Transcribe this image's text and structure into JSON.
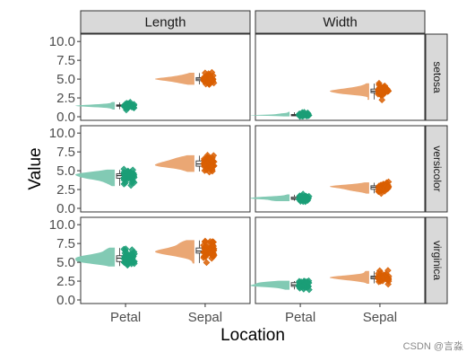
{
  "chart_data": {
    "type": "raincloud",
    "xlabel": "Location",
    "ylabel": "Value",
    "ylim": [
      0,
      10.5
    ],
    "yticks": [
      "0.0",
      "2.5",
      "5.0",
      "7.5",
      "10.0"
    ],
    "ytick_values": [
      0,
      2.5,
      5,
      7.5,
      10
    ],
    "categories": [
      "Petal",
      "Sepal"
    ],
    "columns": [
      "Length",
      "Width"
    ],
    "rows": [
      "setosa",
      "versicolor",
      "virginica"
    ],
    "colors": {
      "Petal": "#1b9e77",
      "Sepal": "#d95f02"
    },
    "panels": [
      {
        "column": "Length",
        "row": "setosa",
        "series": [
          {
            "category": "Petal",
            "values": [
              1.4,
              1.4,
              1.3,
              1.5,
              1.4,
              1.7,
              1.4,
              1.5,
              1.4,
              1.5,
              1.5,
              1.6,
              1.4,
              1.1,
              1.2,
              1.5,
              1.3,
              1.4,
              1.7,
              1.5,
              1.7,
              1.5,
              1.0,
              1.7,
              1.9,
              1.6,
              1.6,
              1.5,
              1.4,
              1.6,
              1.6,
              1.5,
              1.5,
              1.4,
              1.5,
              1.2,
              1.3,
              1.4,
              1.3,
              1.5,
              1.3,
              1.3,
              1.3,
              1.6,
              1.9,
              1.4,
              1.6,
              1.4,
              1.5,
              1.4
            ]
          },
          {
            "category": "Sepal",
            "values": [
              5.1,
              4.9,
              4.7,
              4.6,
              5.0,
              5.4,
              4.6,
              5.0,
              4.4,
              4.9,
              5.4,
              4.8,
              4.8,
              4.3,
              5.8,
              5.7,
              5.4,
              5.1,
              5.7,
              5.1,
              5.4,
              5.1,
              4.6,
              5.1,
              4.8,
              5.0,
              5.0,
              5.2,
              5.2,
              4.7,
              4.8,
              5.4,
              5.2,
              5.5,
              4.9,
              5.0,
              5.5,
              4.9,
              4.4,
              5.1,
              5.0,
              4.5,
              4.4,
              5.0,
              5.1,
              4.8,
              5.1,
              4.6,
              5.3,
              5.0
            ]
          }
        ]
      },
      {
        "column": "Width",
        "row": "setosa",
        "series": [
          {
            "category": "Petal",
            "values": [
              0.2,
              0.2,
              0.2,
              0.2,
              0.2,
              0.4,
              0.3,
              0.2,
              0.2,
              0.1,
              0.2,
              0.2,
              0.1,
              0.1,
              0.2,
              0.4,
              0.4,
              0.3,
              0.3,
              0.3,
              0.2,
              0.4,
              0.2,
              0.5,
              0.2,
              0.2,
              0.4,
              0.2,
              0.2,
              0.2,
              0.2,
              0.4,
              0.1,
              0.2,
              0.2,
              0.2,
              0.2,
              0.1,
              0.2,
              0.2,
              0.3,
              0.3,
              0.2,
              0.6,
              0.4,
              0.3,
              0.2,
              0.2,
              0.2,
              0.2
            ]
          },
          {
            "category": "Sepal",
            "values": [
              3.5,
              3.0,
              3.2,
              3.1,
              3.6,
              3.9,
              3.4,
              3.4,
              2.9,
              3.1,
              3.7,
              3.4,
              3.0,
              3.0,
              4.0,
              4.4,
              3.9,
              3.5,
              3.8,
              3.8,
              3.4,
              3.7,
              3.6,
              3.3,
              3.4,
              3.0,
              3.4,
              3.5,
              3.4,
              3.2,
              3.1,
              3.4,
              4.1,
              4.2,
              3.1,
              3.2,
              3.5,
              3.6,
              3.0,
              3.4,
              3.5,
              2.3,
              3.2,
              3.5,
              3.8,
              3.0,
              3.8,
              3.2,
              3.7,
              3.3
            ]
          }
        ]
      },
      {
        "column": "Length",
        "row": "versicolor",
        "series": [
          {
            "category": "Petal",
            "values": [
              4.7,
              4.5,
              4.9,
              4.0,
              4.6,
              4.5,
              4.7,
              3.3,
              4.6,
              3.9,
              3.5,
              4.2,
              4.0,
              4.7,
              3.6,
              4.4,
              4.5,
              4.1,
              4.5,
              3.9,
              4.8,
              4.0,
              4.9,
              4.7,
              4.3,
              4.4,
              4.8,
              5.0,
              4.5,
              3.5,
              3.8,
              3.7,
              3.9,
              5.1,
              4.5,
              4.5,
              4.7,
              4.4,
              4.1,
              4.0,
              4.4,
              4.6,
              4.0,
              3.3,
              4.2,
              4.2,
              4.2,
              4.3,
              3.0,
              4.1
            ]
          },
          {
            "category": "Sepal",
            "values": [
              7.0,
              6.4,
              6.9,
              5.5,
              6.5,
              5.7,
              6.3,
              4.9,
              6.6,
              5.2,
              5.0,
              5.9,
              6.0,
              6.1,
              5.6,
              6.7,
              5.6,
              5.8,
              6.2,
              5.6,
              5.9,
              6.1,
              6.3,
              6.1,
              6.4,
              6.6,
              6.8,
              6.7,
              6.0,
              5.7,
              5.5,
              5.5,
              5.8,
              6.0,
              5.4,
              6.0,
              6.7,
              6.3,
              5.6,
              5.5,
              5.5,
              6.1,
              5.8,
              5.0,
              5.6,
              5.7,
              5.7,
              6.2,
              5.1,
              5.7
            ]
          }
        ]
      },
      {
        "column": "Width",
        "row": "versicolor",
        "series": [
          {
            "category": "Petal",
            "values": [
              1.4,
              1.5,
              1.5,
              1.3,
              1.5,
              1.3,
              1.6,
              1.0,
              1.3,
              1.4,
              1.0,
              1.5,
              1.0,
              1.4,
              1.3,
              1.4,
              1.5,
              1.0,
              1.5,
              1.1,
              1.8,
              1.3,
              1.5,
              1.2,
              1.3,
              1.4,
              1.4,
              1.7,
              1.5,
              1.0,
              1.1,
              1.0,
              1.2,
              1.6,
              1.5,
              1.6,
              1.5,
              1.3,
              1.3,
              1.3,
              1.2,
              1.4,
              1.2,
              1.0,
              1.3,
              1.2,
              1.3,
              1.3,
              1.1,
              1.3
            ]
          },
          {
            "category": "Sepal",
            "values": [
              3.2,
              3.2,
              3.1,
              2.3,
              2.8,
              2.8,
              3.3,
              2.4,
              2.9,
              2.7,
              2.0,
              3.0,
              2.2,
              2.9,
              2.9,
              3.1,
              3.0,
              2.7,
              2.2,
              2.5,
              3.2,
              2.8,
              2.5,
              2.8,
              2.9,
              3.0,
              2.8,
              3.0,
              2.9,
              2.6,
              2.4,
              2.4,
              2.7,
              2.7,
              3.0,
              3.4,
              3.1,
              2.3,
              3.0,
              2.5,
              2.6,
              3.0,
              2.6,
              2.3,
              2.7,
              3.0,
              2.9,
              2.9,
              2.5,
              2.8
            ]
          }
        ]
      },
      {
        "column": "Length",
        "row": "virginica",
        "series": [
          {
            "category": "Petal",
            "values": [
              6.0,
              5.1,
              5.9,
              5.6,
              5.8,
              6.6,
              4.5,
              6.3,
              5.8,
              6.1,
              5.1,
              5.3,
              5.5,
              5.0,
              5.1,
              5.3,
              5.5,
              6.7,
              6.9,
              5.0,
              5.7,
              4.9,
              6.7,
              4.9,
              5.7,
              6.0,
              4.8,
              4.9,
              5.6,
              5.8,
              6.1,
              6.4,
              5.6,
              5.1,
              5.6,
              6.1,
              5.6,
              5.5,
              4.8,
              5.4,
              5.6,
              5.1,
              5.1,
              5.9,
              5.7,
              5.2,
              5.0,
              5.2,
              5.4,
              5.1
            ]
          },
          {
            "category": "Sepal",
            "values": [
              6.3,
              5.8,
              7.1,
              6.3,
              6.5,
              7.6,
              4.9,
              7.3,
              6.7,
              7.2,
              6.5,
              6.4,
              6.8,
              5.7,
              5.8,
              6.4,
              6.5,
              7.7,
              7.7,
              6.0,
              6.9,
              5.6,
              7.7,
              6.3,
              6.7,
              7.2,
              6.2,
              6.1,
              6.4,
              7.2,
              7.4,
              7.9,
              6.4,
              6.3,
              6.1,
              7.7,
              6.3,
              6.4,
              6.0,
              6.9,
              6.7,
              6.9,
              5.8,
              6.8,
              6.7,
              6.7,
              6.3,
              6.5,
              6.2,
              5.9
            ]
          }
        ]
      },
      {
        "column": "Width",
        "row": "virginica",
        "series": [
          {
            "category": "Petal",
            "values": [
              2.5,
              1.9,
              2.1,
              1.8,
              2.2,
              2.1,
              1.7,
              1.8,
              1.8,
              2.5,
              2.0,
              1.9,
              2.1,
              2.0,
              2.4,
              2.3,
              1.8,
              2.2,
              2.3,
              1.5,
              2.3,
              2.0,
              2.0,
              1.8,
              2.1,
              1.8,
              1.8,
              1.8,
              2.1,
              1.6,
              1.9,
              2.0,
              2.2,
              1.5,
              1.4,
              2.3,
              2.4,
              1.8,
              1.8,
              2.1,
              2.4,
              2.3,
              1.9,
              2.3,
              2.5,
              2.3,
              1.9,
              2.0,
              2.3,
              1.8
            ]
          },
          {
            "category": "Sepal",
            "values": [
              3.3,
              2.7,
              3.0,
              2.9,
              3.0,
              3.0,
              2.5,
              2.9,
              2.5,
              3.6,
              3.2,
              2.7,
              3.0,
              2.5,
              2.8,
              3.2,
              3.0,
              3.8,
              2.6,
              2.2,
              3.2,
              2.8,
              2.8,
              2.7,
              3.3,
              3.2,
              2.8,
              3.0,
              2.8,
              3.0,
              2.8,
              3.8,
              2.8,
              2.8,
              2.6,
              3.0,
              3.4,
              3.1,
              3.0,
              3.1,
              3.1,
              3.1,
              2.7,
              3.2,
              3.3,
              3.0,
              2.5,
              3.0,
              3.4,
              3.0
            ]
          }
        ]
      }
    ]
  },
  "watermark": "CSDN @言淼"
}
